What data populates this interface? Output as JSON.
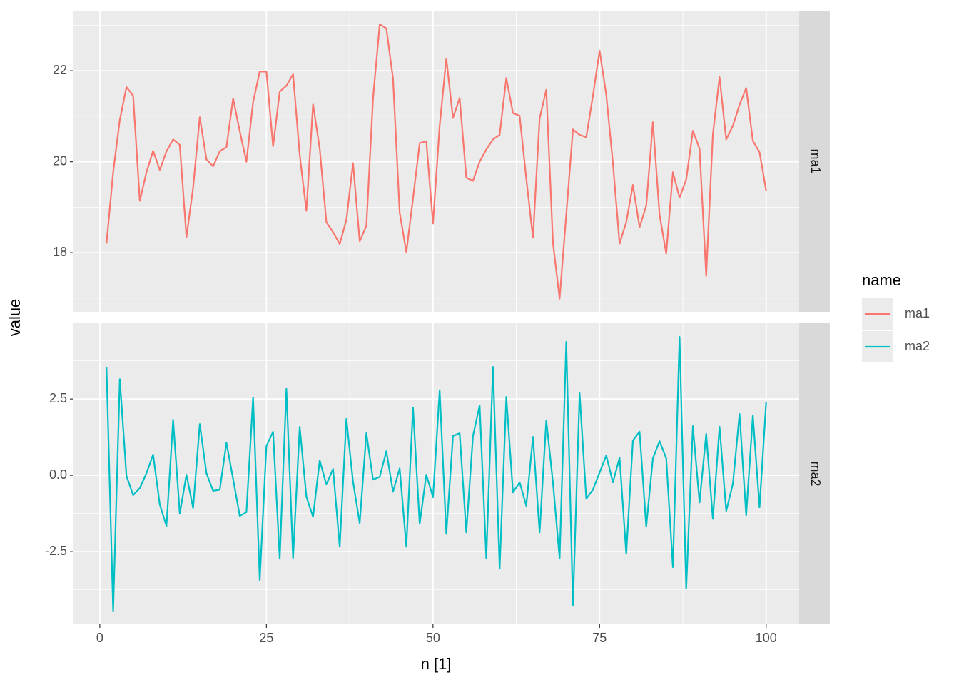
{
  "chart_data": {
    "type": "line",
    "xlabel": "n [1]",
    "ylabel": "value",
    "legend_title": "name",
    "grid": true,
    "x": [
      1,
      2,
      3,
      4,
      5,
      6,
      7,
      8,
      9,
      10,
      11,
      12,
      13,
      14,
      15,
      16,
      17,
      18,
      19,
      20,
      21,
      22,
      23,
      24,
      25,
      26,
      27,
      28,
      29,
      30,
      31,
      32,
      33,
      34,
      35,
      36,
      37,
      38,
      39,
      40,
      41,
      42,
      43,
      44,
      45,
      46,
      47,
      48,
      49,
      50,
      51,
      52,
      53,
      54,
      55,
      56,
      57,
      58,
      59,
      60,
      61,
      62,
      63,
      64,
      65,
      66,
      67,
      68,
      69,
      70,
      71,
      72,
      73,
      74,
      75,
      76,
      77,
      78,
      79,
      80,
      81,
      82,
      83,
      84,
      85,
      86,
      87,
      88,
      89,
      90,
      91,
      92,
      93,
      94,
      95,
      96,
      97,
      98,
      99,
      100
    ],
    "xlim": [
      -3.95,
      104.95
    ],
    "xticks": [
      0,
      25,
      50,
      75,
      100
    ],
    "xminor": [
      12.5,
      37.5,
      62.5,
      87.5
    ],
    "series": [
      {
        "name": "ma1",
        "color": "#f8766d",
        "ylim": [
          16.7,
          23.32
        ],
        "yticks": [
          18,
          20,
          22
        ],
        "yminor": [
          17,
          19,
          21,
          23
        ],
        "values": [
          18.2,
          19.77,
          20.92,
          21.64,
          21.45,
          19.14,
          19.77,
          20.24,
          19.82,
          20.23,
          20.49,
          20.37,
          18.34,
          19.43,
          20.98,
          20.05,
          19.9,
          20.23,
          20.32,
          21.39,
          20.67,
          20.0,
          21.31,
          21.98,
          21.98,
          20.34,
          21.54,
          21.67,
          21.92,
          20.15,
          18.92,
          21.26,
          20.29,
          18.67,
          18.45,
          18.19,
          18.72,
          19.97,
          18.25,
          18.59,
          21.39,
          23.02,
          22.93,
          21.83,
          18.88,
          18.01,
          19.19,
          20.41,
          20.45,
          18.64,
          20.79,
          22.27,
          20.96,
          21.4,
          19.65,
          19.58,
          20.0,
          20.27,
          20.49,
          20.59,
          21.84,
          21.07,
          21.01,
          19.63,
          18.33,
          20.95,
          21.58,
          18.22,
          16.99,
          18.84,
          20.71,
          20.59,
          20.54,
          21.45,
          22.44,
          21.47,
          19.97,
          18.2,
          18.67,
          19.49,
          18.56,
          19.03,
          20.87,
          18.83,
          17.98,
          19.77,
          19.21,
          19.61,
          20.68,
          20.29,
          17.49,
          20.6,
          21.86,
          20.49,
          20.79,
          21.25,
          21.62,
          20.46,
          20.21,
          19.36
        ]
      },
      {
        "name": "ma2",
        "color": "#00bfc4",
        "ylim": [
          -4.88,
          4.98
        ],
        "yticks": [
          2.5,
          {
            "value": 0,
            "label": "0.0"
          },
          -2.5
        ],
        "yminor": [
          3.75,
          1.25,
          -1.25,
          -3.75
        ],
        "values": [
          3.55,
          -4.44,
          3.15,
          -0.02,
          -0.65,
          -0.42,
          0.07,
          0.68,
          -0.96,
          -1.66,
          1.82,
          -1.26,
          0.02,
          -1.07,
          1.68,
          0.07,
          -0.51,
          -0.47,
          1.07,
          -0.12,
          -1.33,
          -1.21,
          2.55,
          -3.43,
          0.96,
          1.43,
          -2.73,
          2.83,
          -2.71,
          1.59,
          -0.7,
          -1.36,
          0.49,
          -0.3,
          0.21,
          -2.34,
          1.85,
          -0.21,
          -1.57,
          1.38,
          -0.14,
          -0.05,
          0.79,
          -0.54,
          0.23,
          -2.34,
          2.22,
          -1.59,
          0.02,
          -0.72,
          2.78,
          -1.92,
          1.29,
          1.38,
          -1.87,
          1.29,
          2.29,
          -2.73,
          3.55,
          -3.06,
          2.57,
          -0.56,
          -0.23,
          -1.0,
          1.26,
          -1.87,
          1.8,
          -0.23,
          -2.73,
          4.37,
          -4.25,
          2.69,
          -0.77,
          -0.47,
          0.09,
          0.65,
          -0.23,
          0.58,
          -2.57,
          1.14,
          1.43,
          -1.68,
          0.56,
          1.12,
          0.56,
          -3.01,
          4.53,
          -3.71,
          1.61,
          -0.89,
          1.36,
          -1.43,
          1.59,
          -1.17,
          -0.28,
          2.01,
          -1.31,
          1.96,
          -1.05,
          2.41
        ]
      }
    ]
  }
}
